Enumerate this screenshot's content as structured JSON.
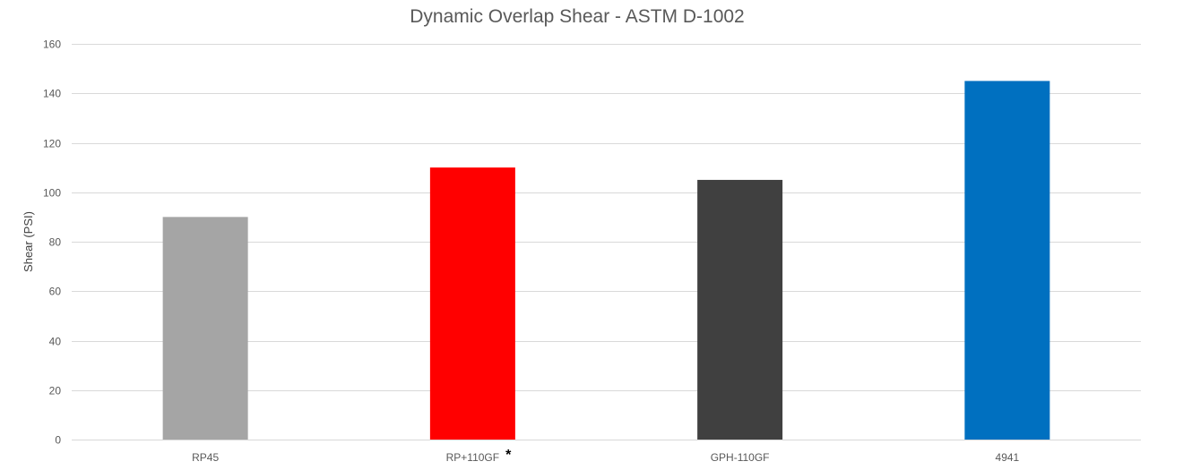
{
  "chart_data": {
    "type": "bar",
    "title": "Dynamic Overlap Shear - ASTM D-1002",
    "xlabel": "",
    "ylabel": "Shear (PSI)",
    "ylim": [
      0,
      160
    ],
    "yticks": [
      0,
      20,
      40,
      60,
      80,
      100,
      120,
      140,
      160
    ],
    "grid": true,
    "legend": "none",
    "categories": [
      "RP45",
      "RP+110GF",
      "GPH-110GF",
      "4941"
    ],
    "category_marks": [
      "",
      "*",
      "",
      ""
    ],
    "values": [
      90,
      110,
      105,
      145
    ],
    "colors": [
      "#a5a5a5",
      "#ff0000",
      "#404040",
      "#0070c0"
    ]
  }
}
